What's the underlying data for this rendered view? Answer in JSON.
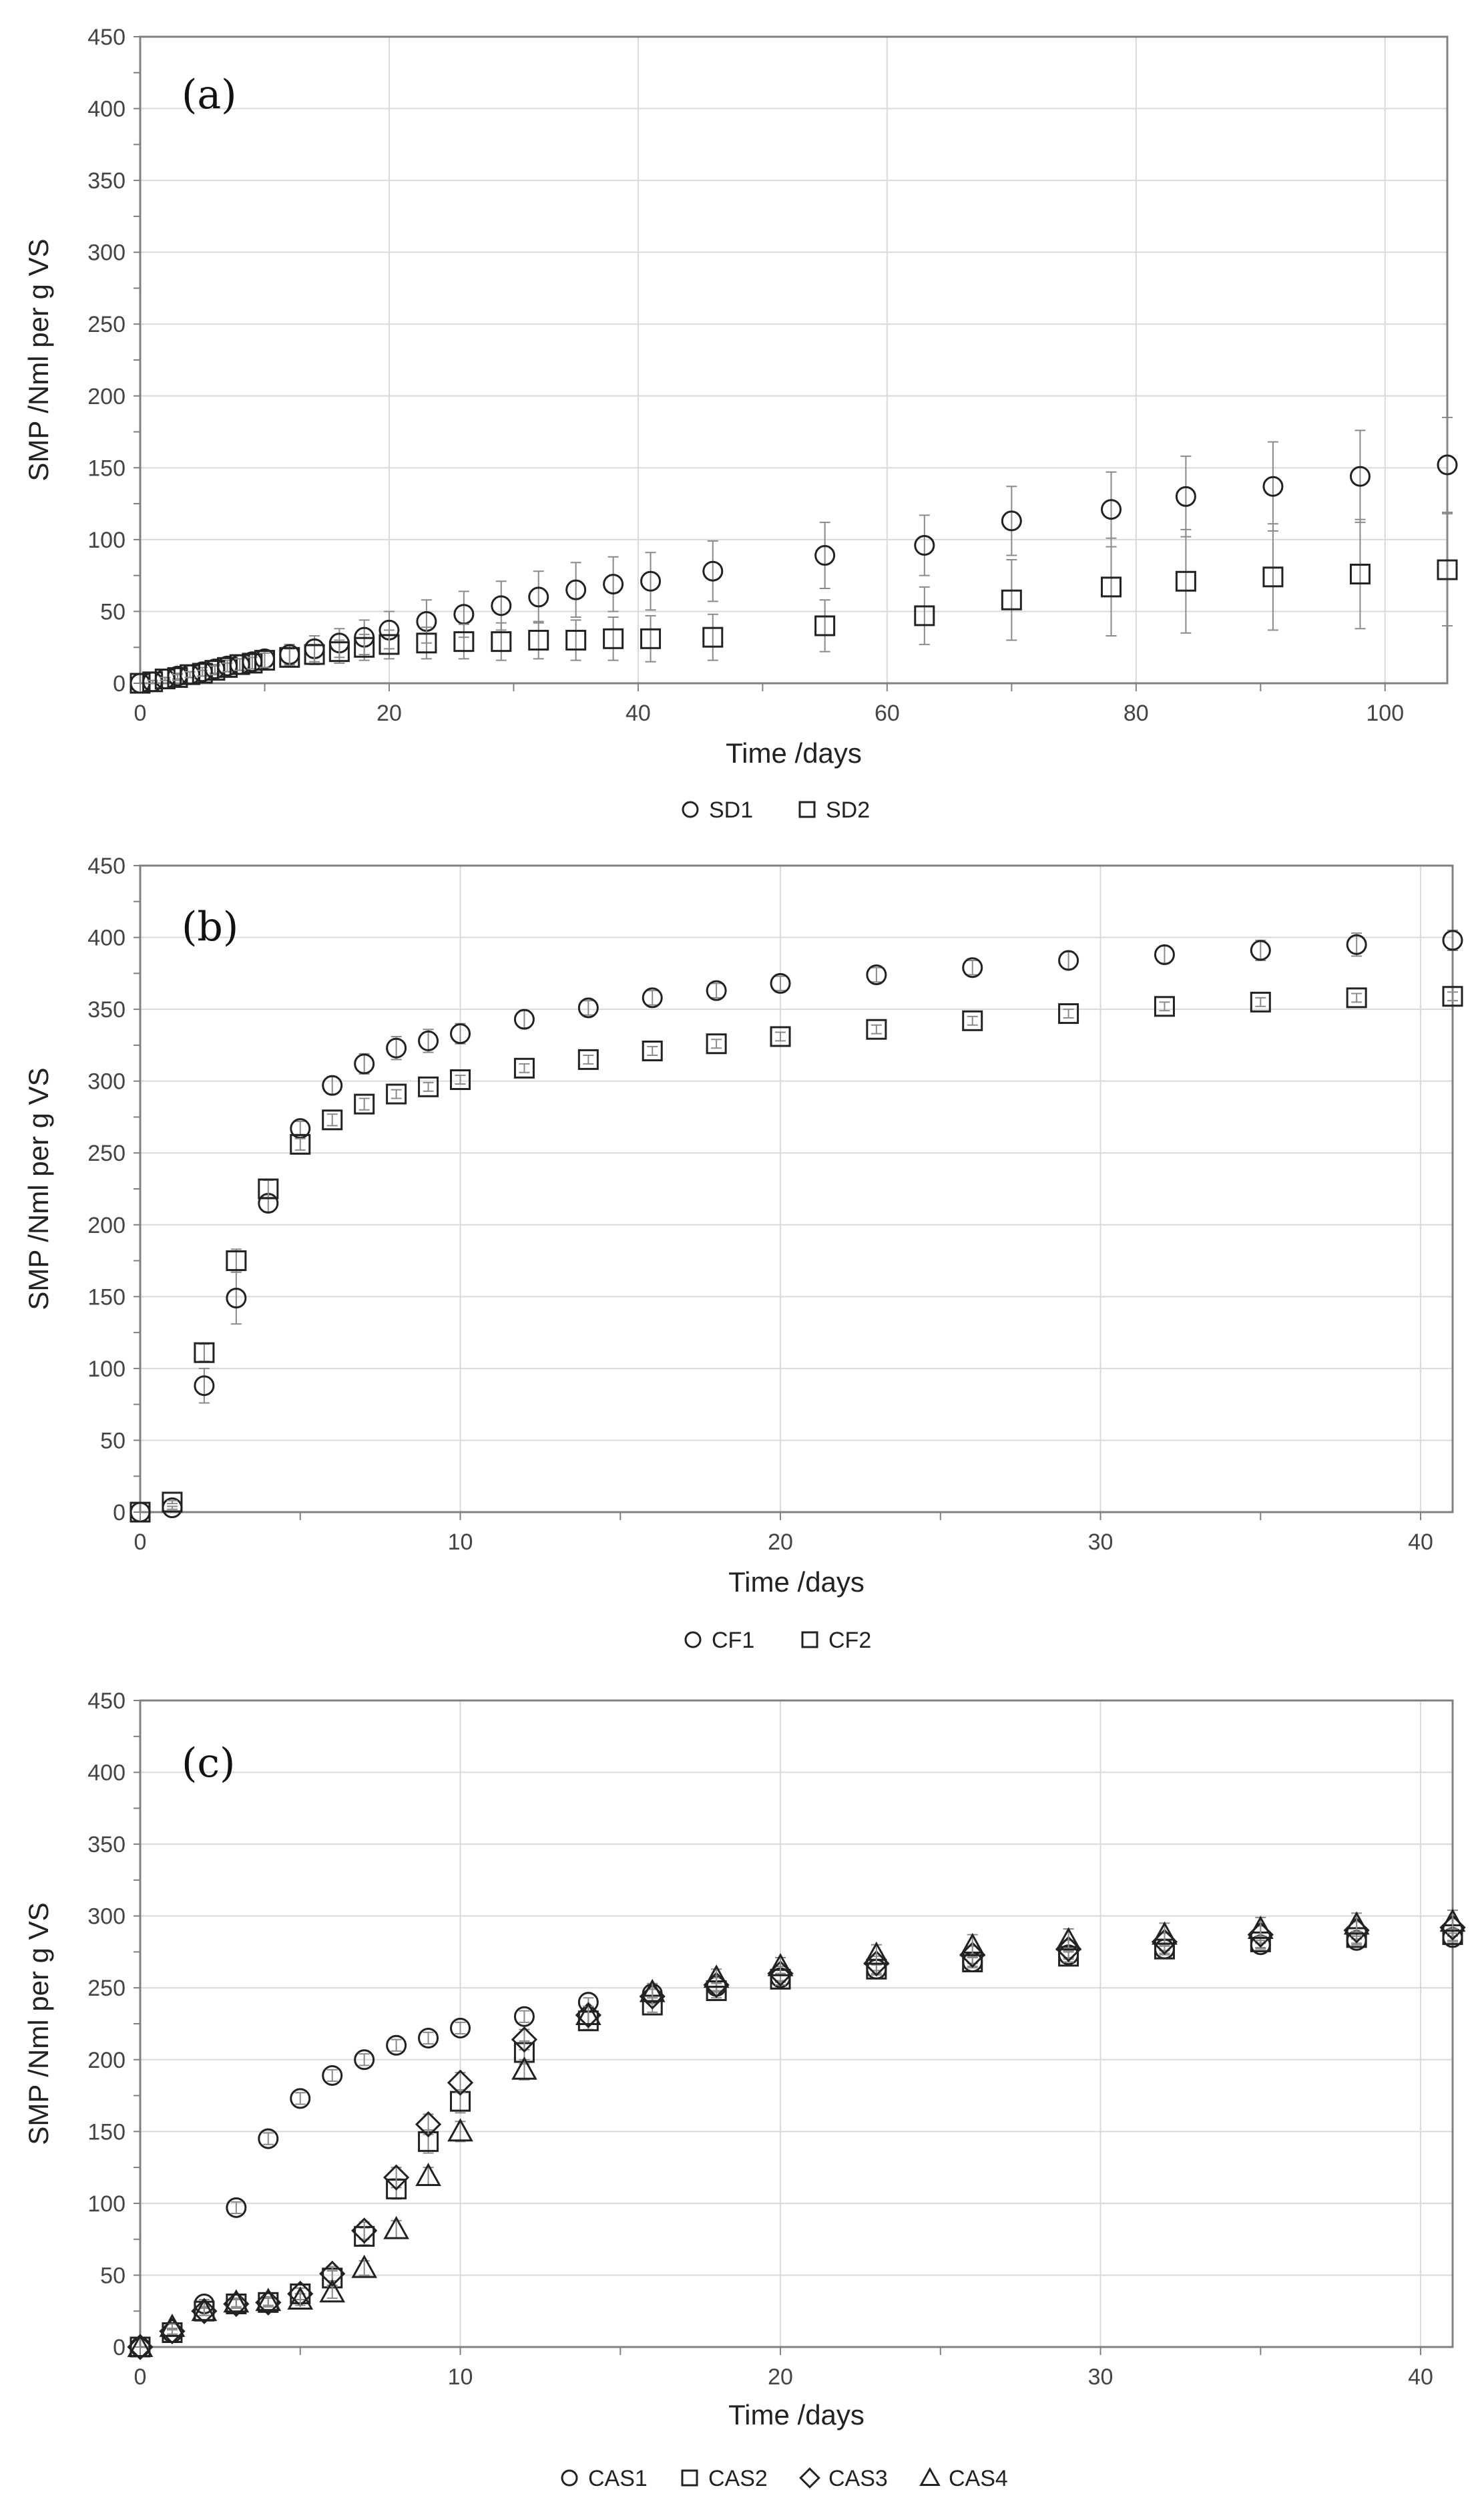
{
  "figure": {
    "ylabel": "SMP /Nml per g VS",
    "xlabel": "Time /days"
  },
  "chart_data": [
    {
      "type": "scatter",
      "panel": "(a)",
      "xlabel": "Time /days",
      "ylabel": "SMP /Nml per g VS",
      "xlim": [
        0,
        105
      ],
      "ylim": [
        0,
        450
      ],
      "xticks": [
        0,
        20,
        40,
        60,
        80,
        100
      ],
      "yticks": [
        0,
        50,
        100,
        150,
        200,
        250,
        300,
        350,
        400,
        450
      ],
      "series": [
        {
          "name": "SD1",
          "marker": "circle",
          "x": [
            0,
            1,
            2,
            3,
            4,
            5,
            6,
            7,
            8,
            9,
            10,
            12,
            14,
            16,
            18,
            20,
            23,
            26,
            29,
            32,
            35,
            38,
            41,
            46,
            55,
            63,
            70,
            78,
            84,
            91,
            98,
            105
          ],
          "y": [
            0,
            1,
            3,
            5,
            6,
            8,
            10,
            12,
            13,
            15,
            17,
            20,
            24,
            28,
            32,
            37,
            43,
            48,
            54,
            60,
            65,
            69,
            71,
            78,
            89,
            96,
            113,
            121,
            130,
            137,
            144,
            152
          ],
          "err": [
            0,
            1,
            1,
            2,
            2,
            3,
            3,
            4,
            4,
            5,
            6,
            7,
            9,
            10,
            12,
            13,
            15,
            16,
            17,
            18,
            19,
            19,
            20,
            21,
            23,
            21,
            24,
            26,
            28,
            31,
            32,
            33
          ]
        },
        {
          "name": "SD2",
          "marker": "square",
          "x": [
            0,
            1,
            2,
            3,
            4,
            5,
            6,
            7,
            8,
            9,
            10,
            12,
            14,
            16,
            18,
            20,
            23,
            26,
            29,
            32,
            35,
            38,
            41,
            46,
            55,
            63,
            70,
            78,
            84,
            91,
            98,
            105
          ],
          "y": [
            0,
            1,
            3,
            4,
            6,
            7,
            9,
            11,
            13,
            14,
            16,
            18,
            20,
            22,
            25,
            27,
            28,
            29,
            29,
            30,
            30,
            31,
            31,
            32,
            40,
            47,
            58,
            67,
            71,
            74,
            76,
            79
          ],
          "err": [
            0,
            1,
            1,
            2,
            2,
            2,
            3,
            3,
            4,
            4,
            5,
            6,
            7,
            8,
            9,
            10,
            11,
            12,
            13,
            13,
            14,
            15,
            16,
            16,
            18,
            20,
            28,
            34,
            36,
            37,
            38,
            39
          ]
        }
      ],
      "legend": [
        "SD1",
        "SD2"
      ]
    },
    {
      "type": "scatter",
      "panel": "(b)",
      "xlabel": "Time /days",
      "ylabel": "SMP /Nml per g VS",
      "xlim": [
        0,
        41
      ],
      "ylim": [
        0,
        450
      ],
      "xticks": [
        0,
        10,
        20,
        30,
        40
      ],
      "yticks": [
        0,
        50,
        100,
        150,
        200,
        250,
        300,
        350,
        400,
        450
      ],
      "series": [
        {
          "name": "CF1",
          "marker": "circle",
          "x": [
            0,
            1,
            2,
            3,
            4,
            5,
            6,
            7,
            8,
            9,
            10,
            12,
            14,
            16,
            18,
            20,
            23,
            26,
            29,
            32,
            35,
            38,
            41
          ],
          "y": [
            0,
            3,
            88,
            149,
            215,
            267,
            297,
            312,
            323,
            328,
            333,
            343,
            351,
            358,
            363,
            368,
            374,
            379,
            384,
            388,
            391,
            395,
            398
          ],
          "err": [
            0,
            1,
            12,
            18,
            6,
            5,
            6,
            7,
            8,
            8,
            7,
            6,
            5,
            5,
            5,
            5,
            5,
            5,
            6,
            6,
            7,
            8,
            7
          ]
        },
        {
          "name": "CF2",
          "marker": "square",
          "x": [
            0,
            1,
            2,
            3,
            4,
            5,
            6,
            7,
            8,
            9,
            10,
            12,
            14,
            16,
            18,
            20,
            23,
            26,
            29,
            32,
            35,
            38,
            41
          ],
          "y": [
            0,
            7,
            111,
            175,
            225,
            256,
            273,
            284,
            291,
            296,
            301,
            309,
            315,
            321,
            326,
            331,
            336,
            342,
            347,
            352,
            355,
            358,
            359
          ],
          "err": [
            0,
            1,
            6,
            8,
            6,
            4,
            4,
            4,
            3,
            3,
            3,
            3,
            3,
            3,
            3,
            3,
            3,
            3,
            3,
            3,
            3,
            3,
            3
          ]
        }
      ],
      "legend": [
        "CF1",
        "CF2"
      ]
    },
    {
      "type": "scatter",
      "panel": "(c)",
      "xlabel": "Time /days",
      "ylabel": "SMP /Nml per g VS",
      "xlim": [
        0,
        41
      ],
      "ylim": [
        0,
        450
      ],
      "xticks": [
        0,
        10,
        20,
        30,
        40
      ],
      "yticks": [
        0,
        50,
        100,
        150,
        200,
        250,
        300,
        350,
        400,
        450
      ],
      "series": [
        {
          "name": "CAS1",
          "marker": "circle",
          "x": [
            0,
            1,
            2,
            3,
            4,
            5,
            6,
            7,
            8,
            9,
            10,
            12,
            14,
            16,
            18,
            20,
            23,
            26,
            29,
            32,
            35,
            38,
            41
          ],
          "y": [
            0,
            10,
            30,
            97,
            145,
            173,
            189,
            200,
            210,
            215,
            222,
            230,
            240,
            246,
            251,
            257,
            263,
            268,
            273,
            277,
            280,
            283,
            285
          ],
          "err": [
            0,
            2,
            3,
            4,
            4,
            4,
            4,
            4,
            4,
            4,
            4,
            4,
            3,
            3,
            3,
            3,
            3,
            3,
            3,
            3,
            3,
            3,
            3
          ]
        },
        {
          "name": "CAS2",
          "marker": "square",
          "x": [
            0,
            1,
            2,
            3,
            4,
            5,
            6,
            7,
            8,
            9,
            10,
            12,
            14,
            16,
            18,
            20,
            23,
            26,
            29,
            32,
            35,
            38,
            41
          ],
          "y": [
            0,
            10,
            25,
            30,
            31,
            37,
            48,
            77,
            110,
            143,
            171,
            205,
            227,
            238,
            248,
            256,
            263,
            268,
            272,
            277,
            282,
            285,
            287
          ],
          "err": [
            0,
            2,
            3,
            3,
            3,
            4,
            5,
            6,
            7,
            8,
            8,
            8,
            6,
            5,
            5,
            4,
            4,
            4,
            4,
            4,
            4,
            4,
            4
          ]
        },
        {
          "name": "CAS3",
          "marker": "diamond",
          "x": [
            0,
            1,
            2,
            3,
            4,
            5,
            6,
            7,
            8,
            9,
            10,
            12,
            14,
            16,
            18,
            20,
            23,
            26,
            29,
            32,
            35,
            38,
            41
          ],
          "y": [
            0,
            11,
            25,
            30,
            31,
            37,
            51,
            81,
            118,
            155,
            184,
            214,
            231,
            244,
            252,
            260,
            267,
            273,
            277,
            282,
            287,
            290,
            292
          ],
          "err": [
            0,
            2,
            3,
            3,
            3,
            4,
            5,
            6,
            7,
            7,
            7,
            7,
            6,
            5,
            5,
            5,
            5,
            6,
            6,
            6,
            6,
            6,
            6
          ]
        },
        {
          "name": "CAS4",
          "marker": "triangle",
          "x": [
            0,
            1,
            2,
            3,
            4,
            5,
            6,
            7,
            8,
            9,
            10,
            12,
            14,
            16,
            18,
            20,
            23,
            26,
            29,
            32,
            35,
            38,
            41
          ],
          "y": [
            0,
            14,
            25,
            31,
            32,
            33,
            38,
            55,
            82,
            119,
            150,
            193,
            231,
            247,
            257,
            265,
            273,
            279,
            283,
            287,
            291,
            294,
            296
          ],
          "err": [
            0,
            2,
            3,
            3,
            3,
            4,
            4,
            5,
            6,
            6,
            7,
            7,
            6,
            6,
            6,
            6,
            7,
            8,
            8,
            8,
            8,
            8,
            8
          ]
        }
      ],
      "legend": [
        "CAS1",
        "CAS2",
        "CAS3",
        "CAS4"
      ]
    }
  ]
}
